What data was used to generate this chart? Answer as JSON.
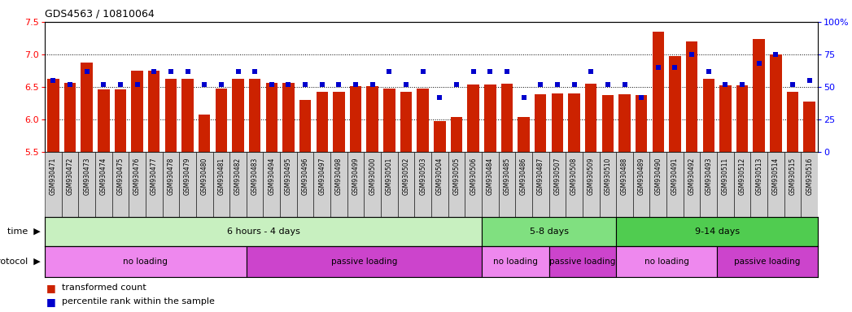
{
  "title": "GDS4563 / 10810064",
  "categories": [
    "GSM930471",
    "GSM930472",
    "GSM930473",
    "GSM930474",
    "GSM930475",
    "GSM930476",
    "GSM930477",
    "GSM930478",
    "GSM930479",
    "GSM930480",
    "GSM930481",
    "GSM930482",
    "GSM930483",
    "GSM930494",
    "GSM930495",
    "GSM930496",
    "GSM930497",
    "GSM930498",
    "GSM930499",
    "GSM930500",
    "GSM930501",
    "GSM930502",
    "GSM930503",
    "GSM930504",
    "GSM930505",
    "GSM930506",
    "GSM930484",
    "GSM930485",
    "GSM930486",
    "GSM930487",
    "GSM930507",
    "GSM930508",
    "GSM930509",
    "GSM930510",
    "GSM930488",
    "GSM930489",
    "GSM930490",
    "GSM930491",
    "GSM930492",
    "GSM930493",
    "GSM930511",
    "GSM930512",
    "GSM930513",
    "GSM930514",
    "GSM930515",
    "GSM930516"
  ],
  "red_values": [
    6.63,
    6.56,
    6.88,
    6.46,
    6.46,
    6.75,
    6.75,
    6.63,
    6.63,
    6.08,
    6.47,
    6.62,
    6.62,
    6.56,
    6.56,
    6.3,
    6.43,
    6.43,
    6.51,
    6.51,
    6.47,
    6.42,
    6.47,
    5.98,
    6.04,
    6.54,
    6.54,
    6.55,
    6.04,
    6.39,
    6.4,
    6.4,
    6.55,
    6.38,
    6.39,
    6.38,
    7.35,
    6.97,
    7.2,
    6.63,
    6.53,
    6.52,
    7.24,
    7.0,
    6.42,
    6.27
  ],
  "blue_values": [
    55,
    52,
    62,
    52,
    52,
    52,
    62,
    62,
    62,
    52,
    52,
    62,
    62,
    52,
    52,
    52,
    52,
    52,
    52,
    52,
    62,
    52,
    62,
    42,
    52,
    62,
    62,
    62,
    42,
    52,
    52,
    52,
    62,
    52,
    52,
    42,
    65,
    65,
    75,
    62,
    52,
    52,
    68,
    75,
    52,
    55
  ],
  "ylim_left": [
    5.5,
    7.5
  ],
  "ylim_right": [
    0,
    100
  ],
  "yticks_left": [
    5.5,
    6.0,
    6.5,
    7.0,
    7.5
  ],
  "yticks_right": [
    0,
    25,
    50,
    75,
    100
  ],
  "bar_color": "#cc2200",
  "dot_color": "#0000cc",
  "chart_bg": "#ffffff",
  "xlabel_bg": "#d0d0d0",
  "time_groups": [
    {
      "label": "6 hours - 4 days",
      "start": 0,
      "end": 25,
      "color": "#c8f0c0"
    },
    {
      "label": "5-8 days",
      "start": 26,
      "end": 33,
      "color": "#80e080"
    },
    {
      "label": "9-14 days",
      "start": 34,
      "end": 45,
      "color": "#50cc50"
    }
  ],
  "protocol_groups": [
    {
      "label": "no loading",
      "start": 0,
      "end": 11,
      "color": "#ee88ee"
    },
    {
      "label": "passive loading",
      "start": 12,
      "end": 25,
      "color": "#cc44cc"
    },
    {
      "label": "no loading",
      "start": 26,
      "end": 29,
      "color": "#ee88ee"
    },
    {
      "label": "passive loading",
      "start": 30,
      "end": 33,
      "color": "#cc44cc"
    },
    {
      "label": "no loading",
      "start": 34,
      "end": 39,
      "color": "#ee88ee"
    },
    {
      "label": "passive loading",
      "start": 40,
      "end": 45,
      "color": "#cc44cc"
    }
  ],
  "legend_red": "transformed count",
  "legend_blue": "percentile rank within the sample"
}
